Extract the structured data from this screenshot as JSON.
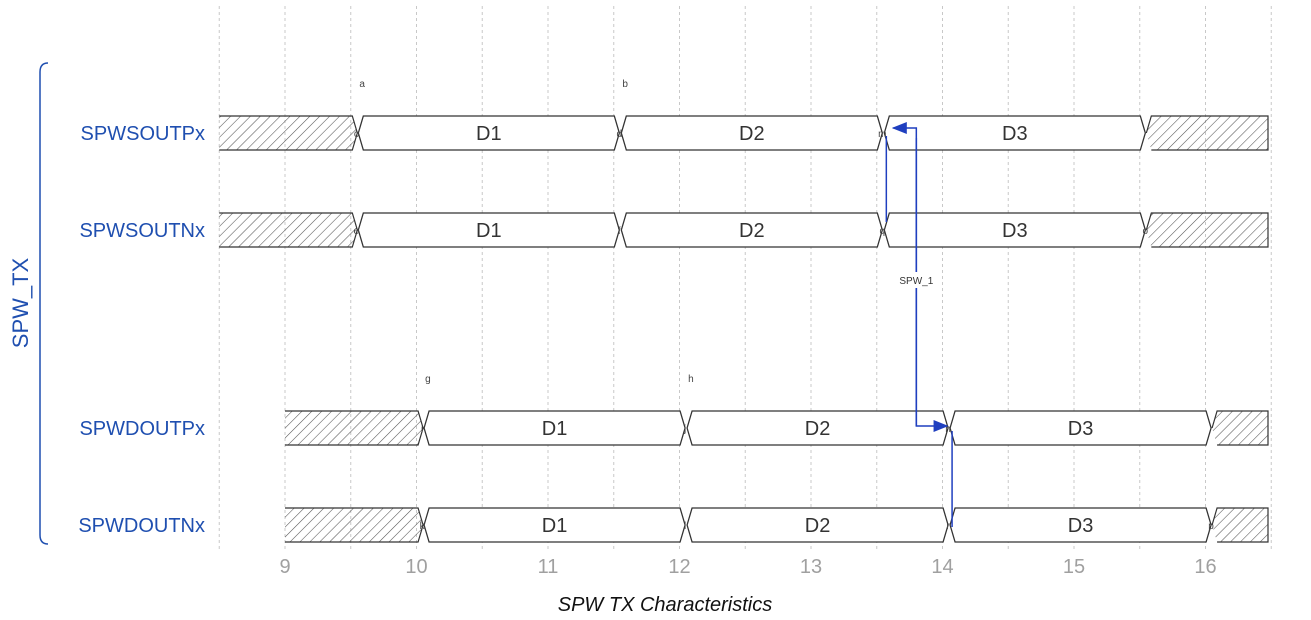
{
  "diagram": {
    "group_label": "SPW_TX",
    "caption": "SPW TX Characteristics",
    "x_axis": {
      "ticks": [
        9,
        10,
        11,
        12,
        13,
        14,
        15,
        16
      ],
      "range": [
        8.5,
        16.6
      ]
    },
    "signals": [
      {
        "name": "SPWSOUTPx",
        "segments": [
          {
            "type": "x",
            "from": 8.5,
            "to": 9.55
          },
          {
            "type": "data",
            "label": "D1",
            "from": 9.55,
            "to": 11.55
          },
          {
            "type": "data",
            "label": "D2",
            "from": 11.55,
            "to": 13.55
          },
          {
            "type": "data",
            "label": "D3",
            "from": 13.55,
            "to": 15.55
          },
          {
            "type": "x",
            "from": 15.55,
            "to": 16.5
          }
        ],
        "nodes": [
          {
            "label": "a",
            "x": 9.55,
            "pos": "above"
          },
          {
            "label": "c",
            "x": 9.55,
            "pos": "inline"
          },
          {
            "label": "b",
            "x": 11.55,
            "pos": "above"
          },
          {
            "label": "d",
            "x": 11.55,
            "pos": "inline"
          },
          {
            "label": "m",
            "x": 13.55,
            "pos": "inline"
          }
        ]
      },
      {
        "name": "SPWSOUTNx",
        "segments": [
          {
            "type": "x",
            "from": 8.5,
            "to": 9.55
          },
          {
            "type": "data",
            "label": "D1",
            "from": 9.55,
            "to": 11.55
          },
          {
            "type": "data",
            "label": "D2",
            "from": 11.55,
            "to": 13.55
          },
          {
            "type": "data",
            "label": "D3",
            "from": 13.55,
            "to": 15.55
          },
          {
            "type": "x",
            "from": 15.55,
            "to": 16.5
          }
        ],
        "nodes": [
          {
            "label": "e",
            "x": 9.55,
            "pos": "inline"
          },
          {
            "label": "f",
            "x": 11.55,
            "pos": "inline"
          },
          {
            "label": "q",
            "x": 13.55,
            "pos": "inline"
          },
          {
            "label": "o",
            "x": 15.55,
            "pos": "inline"
          }
        ]
      },
      {
        "name": "SPWDOUTPx",
        "segments": [
          {
            "type": "x",
            "from": 9.0,
            "to": 10.05
          },
          {
            "type": "data",
            "label": "D1",
            "from": 10.05,
            "to": 12.05
          },
          {
            "type": "data",
            "label": "D2",
            "from": 12.05,
            "to": 14.05
          },
          {
            "type": "data",
            "label": "D3",
            "from": 14.05,
            "to": 16.05
          },
          {
            "type": "x",
            "from": 16.05,
            "to": 16.6
          }
        ],
        "nodes": [
          {
            "label": "g",
            "x": 10.05,
            "pos": "above"
          },
          {
            "label": "i",
            "x": 10.05,
            "pos": "inline"
          },
          {
            "label": "h",
            "x": 12.05,
            "pos": "above"
          },
          {
            "label": "j",
            "x": 12.05,
            "pos": "inline"
          },
          {
            "label": "n",
            "x": 14.05,
            "pos": "inline"
          }
        ]
      },
      {
        "name": "SPWDOUTNx",
        "segments": [
          {
            "type": "x",
            "from": 9.0,
            "to": 10.05
          },
          {
            "type": "data",
            "label": "D1",
            "from": 10.05,
            "to": 12.05
          },
          {
            "type": "data",
            "label": "D2",
            "from": 12.05,
            "to": 14.05
          },
          {
            "type": "data",
            "label": "D3",
            "from": 14.05,
            "to": 16.05
          },
          {
            "type": "x",
            "from": 16.05,
            "to": 16.6
          }
        ],
        "nodes": [
          {
            "label": "k",
            "x": 10.05,
            "pos": "inline"
          },
          {
            "label": "l",
            "x": 12.05,
            "pos": "inline"
          },
          {
            "label": "r",
            "x": 14.05,
            "pos": "inline"
          },
          {
            "label": "p",
            "x": 16.05,
            "pos": "inline"
          }
        ]
      }
    ],
    "arrow": {
      "label": "SPW_1",
      "from_node": "m",
      "to_node": "n",
      "color": "#1f3fbf"
    },
    "colors": {
      "signal_label": "#1f4fb0",
      "arrow": "#1f3fbf",
      "tick": "#a0a0a0"
    }
  }
}
